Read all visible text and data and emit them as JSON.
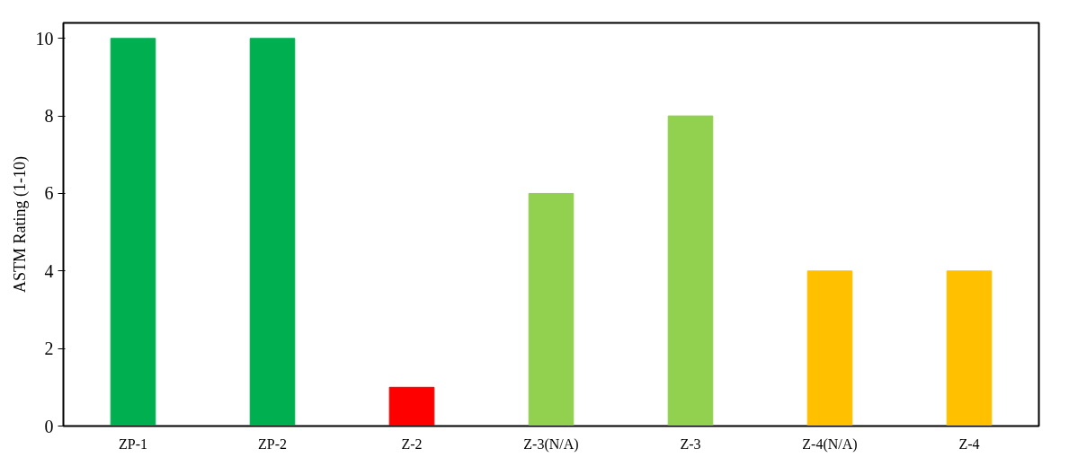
{
  "chart_data": {
    "type": "bar",
    "ylabel": "ASTM Rating (1-10)",
    "categories": [
      "ZP-1",
      "ZP-2",
      "Z-2",
      "Z-3(N/A)",
      "Z-3",
      "Z-4(N/A)",
      "Z-4"
    ],
    "values": [
      10,
      10,
      1,
      6,
      8,
      4,
      4
    ],
    "colors": [
      "#00b050",
      "#00b050",
      "#ff0000",
      "#92d050",
      "#92d050",
      "#ffc000",
      "#ffc000"
    ],
    "ylim": [
      0,
      10.4
    ],
    "yticks": [
      0,
      2,
      4,
      6,
      8,
      10
    ],
    "grid": false
  }
}
